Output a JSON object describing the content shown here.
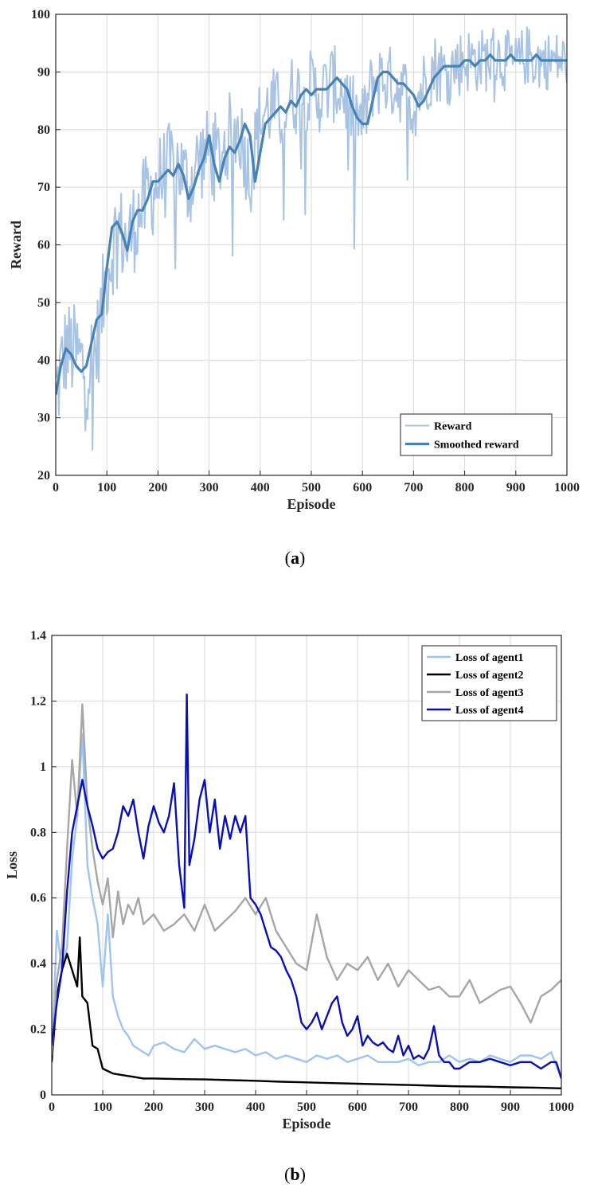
{
  "captions": {
    "a_open": "(",
    "a_letter": "a",
    "a_close": ")",
    "b_open": "(",
    "b_letter": "b",
    "b_close": ")"
  },
  "chart_data": [
    {
      "type": "line",
      "panel": "a",
      "xlabel": "Episode",
      "ylabel": "Reward",
      "xlim": [
        0,
        1000
      ],
      "ylim": [
        20,
        100
      ],
      "xticks": [
        0,
        100,
        200,
        300,
        400,
        500,
        600,
        700,
        800,
        900,
        1000
      ],
      "yticks": [
        20,
        30,
        40,
        50,
        60,
        70,
        80,
        90,
        100
      ],
      "grid": true,
      "legend_position": "bottom-right",
      "series": [
        {
          "name": "Reward",
          "color": "#a9c3e3",
          "noisy": true,
          "x": [
            0,
            20,
            40,
            60,
            80,
            100,
            120,
            140,
            160,
            180,
            200,
            220,
            240,
            260,
            280,
            300,
            320,
            340,
            360,
            380,
            400,
            420,
            440,
            460,
            480,
            500,
            520,
            540,
            560,
            580,
            600,
            620,
            640,
            660,
            680,
            700,
            720,
            740,
            760,
            780,
            800,
            820,
            840,
            860,
            880,
            900,
            920,
            940,
            960,
            980,
            1000
          ],
          "values": [
            34,
            42,
            41,
            38,
            42,
            55,
            63,
            60,
            65,
            68,
            71,
            73,
            74,
            70,
            75,
            76,
            75,
            79,
            80,
            72,
            82,
            84,
            83,
            86,
            86,
            87,
            86,
            88,
            87,
            83,
            81,
            88,
            89,
            88,
            87,
            84,
            88,
            91,
            90,
            91,
            92,
            92,
            92,
            93,
            92,
            91,
            93,
            92,
            92,
            92,
            92
          ]
        },
        {
          "name": "Smoothed reward",
          "color": "#4682b4",
          "x": [
            0,
            10,
            20,
            30,
            40,
            50,
            60,
            70,
            80,
            90,
            100,
            110,
            120,
            130,
            140,
            150,
            160,
            170,
            180,
            190,
            200,
            210,
            220,
            230,
            240,
            250,
            260,
            270,
            280,
            290,
            300,
            310,
            320,
            330,
            340,
            350,
            360,
            370,
            380,
            390,
            400,
            410,
            420,
            430,
            440,
            450,
            460,
            470,
            480,
            490,
            500,
            510,
            520,
            530,
            540,
            550,
            560,
            570,
            580,
            590,
            600,
            610,
            620,
            630,
            640,
            650,
            660,
            670,
            680,
            690,
            700,
            710,
            720,
            730,
            740,
            750,
            760,
            770,
            780,
            790,
            800,
            810,
            820,
            830,
            840,
            850,
            860,
            870,
            880,
            890,
            900,
            910,
            920,
            930,
            940,
            950,
            960,
            970,
            980,
            990,
            1000
          ],
          "values": [
            34,
            39,
            42,
            41,
            39,
            38,
            39,
            43,
            47,
            48,
            56,
            63,
            64,
            62,
            59,
            64,
            66,
            66,
            68,
            71,
            71,
            72,
            73,
            72,
            74,
            72,
            68,
            70,
            73,
            75,
            79,
            74,
            71,
            75,
            77,
            76,
            78,
            81,
            79,
            71,
            76,
            81,
            82,
            83,
            84,
            83,
            85,
            84,
            86,
            87,
            86,
            87,
            87,
            87,
            88,
            89,
            88,
            87,
            84,
            82,
            81,
            81,
            85,
            89,
            90,
            90,
            89,
            88,
            88,
            87,
            86,
            84,
            85,
            87,
            89,
            90,
            91,
            91,
            91,
            91,
            92,
            92,
            91,
            92,
            92,
            93,
            92,
            92,
            92,
            93,
            92,
            92,
            92,
            92,
            93,
            92,
            92,
            92,
            92,
            92,
            92
          ]
        }
      ]
    },
    {
      "type": "line",
      "panel": "b",
      "xlabel": "Episode",
      "ylabel": "Loss",
      "xlim": [
        0,
        1000
      ],
      "ylim": [
        0,
        1.4
      ],
      "xticks": [
        0,
        100,
        200,
        300,
        400,
        500,
        600,
        700,
        800,
        900,
        1000
      ],
      "yticks": [
        0,
        0.2,
        0.4,
        0.6,
        0.8,
        1,
        1.2,
        1.4
      ],
      "yticklabels": [
        "0",
        "0.2",
        "0.4",
        "0.6",
        "0.8",
        "1",
        "1.2",
        "1.4"
      ],
      "grid": true,
      "legend_position": "top-right",
      "series": [
        {
          "name": "Loss of agent1",
          "color": "#9ec4ef",
          "x": [
            0,
            10,
            20,
            30,
            40,
            50,
            60,
            70,
            80,
            90,
            100,
            110,
            120,
            130,
            140,
            150,
            160,
            170,
            180,
            190,
            200,
            220,
            240,
            260,
            280,
            300,
            320,
            340,
            360,
            380,
            400,
            420,
            440,
            460,
            480,
            500,
            520,
            540,
            560,
            580,
            600,
            620,
            640,
            660,
            680,
            700,
            720,
            740,
            760,
            780,
            800,
            820,
            840,
            860,
            880,
            900,
            920,
            940,
            960,
            980,
            1000
          ],
          "values": [
            0.12,
            0.5,
            0.38,
            0.45,
            0.72,
            0.85,
            1.1,
            0.7,
            0.6,
            0.52,
            0.33,
            0.55,
            0.3,
            0.24,
            0.2,
            0.18,
            0.15,
            0.14,
            0.13,
            0.12,
            0.15,
            0.16,
            0.14,
            0.13,
            0.17,
            0.14,
            0.15,
            0.14,
            0.13,
            0.14,
            0.12,
            0.13,
            0.11,
            0.12,
            0.11,
            0.1,
            0.12,
            0.11,
            0.12,
            0.1,
            0.11,
            0.12,
            0.1,
            0.1,
            0.1,
            0.11,
            0.09,
            0.1,
            0.1,
            0.12,
            0.1,
            0.11,
            0.1,
            0.12,
            0.11,
            0.1,
            0.12,
            0.12,
            0.11,
            0.13,
            0.05
          ]
        },
        {
          "name": "Loss of agent2",
          "color": "#000000",
          "x": [
            0,
            10,
            20,
            30,
            40,
            50,
            55,
            60,
            70,
            80,
            90,
            100,
            120,
            140,
            160,
            180,
            200,
            250,
            300,
            350,
            400,
            450,
            500,
            550,
            600,
            650,
            700,
            750,
            800,
            850,
            900,
            950,
            1000
          ],
          "values": [
            0.1,
            0.3,
            0.38,
            0.43,
            0.38,
            0.33,
            0.48,
            0.3,
            0.28,
            0.15,
            0.14,
            0.08,
            0.065,
            0.06,
            0.055,
            0.05,
            0.05,
            0.048,
            0.047,
            0.045,
            0.043,
            0.04,
            0.038,
            0.036,
            0.034,
            0.032,
            0.03,
            0.028,
            0.026,
            0.025,
            0.023,
            0.022,
            0.02
          ]
        },
        {
          "name": "Loss of agent3",
          "color": "#a6a6a6",
          "x": [
            0,
            10,
            20,
            30,
            40,
            50,
            60,
            70,
            80,
            90,
            100,
            110,
            120,
            130,
            140,
            150,
            160,
            170,
            180,
            200,
            220,
            240,
            260,
            280,
            300,
            320,
            340,
            360,
            380,
            400,
            420,
            440,
            460,
            480,
            500,
            520,
            540,
            560,
            580,
            600,
            620,
            640,
            660,
            680,
            700,
            720,
            740,
            760,
            780,
            800,
            820,
            840,
            860,
            880,
            900,
            920,
            940,
            960,
            980,
            1000
          ],
          "values": [
            0.12,
            0.35,
            0.45,
            0.75,
            1.02,
            0.85,
            1.19,
            0.88,
            0.75,
            0.65,
            0.58,
            0.66,
            0.48,
            0.62,
            0.52,
            0.58,
            0.55,
            0.6,
            0.52,
            0.55,
            0.5,
            0.52,
            0.55,
            0.5,
            0.58,
            0.5,
            0.53,
            0.56,
            0.6,
            0.55,
            0.6,
            0.5,
            0.45,
            0.4,
            0.38,
            0.55,
            0.42,
            0.35,
            0.4,
            0.38,
            0.42,
            0.35,
            0.4,
            0.33,
            0.38,
            0.35,
            0.32,
            0.33,
            0.3,
            0.3,
            0.35,
            0.28,
            0.3,
            0.32,
            0.33,
            0.28,
            0.22,
            0.3,
            0.32,
            0.35
          ]
        },
        {
          "name": "Loss of agent4",
          "color": "#0a0fb4",
          "x": [
            0,
            10,
            20,
            30,
            40,
            50,
            60,
            70,
            80,
            90,
            100,
            110,
            120,
            130,
            140,
            150,
            160,
            170,
            180,
            190,
            200,
            210,
            220,
            230,
            240,
            250,
            260,
            265,
            270,
            280,
            290,
            300,
            310,
            320,
            330,
            340,
            350,
            360,
            370,
            380,
            390,
            400,
            410,
            420,
            430,
            440,
            450,
            460,
            470,
            480,
            490,
            500,
            510,
            520,
            530,
            540,
            550,
            560,
            570,
            580,
            590,
            600,
            610,
            620,
            630,
            640,
            650,
            660,
            670,
            680,
            690,
            700,
            710,
            720,
            730,
            740,
            750,
            760,
            770,
            780,
            790,
            800,
            820,
            840,
            860,
            880,
            900,
            920,
            940,
            960,
            980,
            990,
            1000
          ],
          "values": [
            0.15,
            0.28,
            0.38,
            0.62,
            0.8,
            0.88,
            0.96,
            0.88,
            0.82,
            0.75,
            0.72,
            0.74,
            0.75,
            0.8,
            0.88,
            0.85,
            0.9,
            0.8,
            0.72,
            0.82,
            0.88,
            0.83,
            0.8,
            0.85,
            0.95,
            0.7,
            0.57,
            1.22,
            0.7,
            0.78,
            0.9,
            0.96,
            0.8,
            0.9,
            0.75,
            0.85,
            0.78,
            0.85,
            0.8,
            0.85,
            0.6,
            0.58,
            0.55,
            0.5,
            0.45,
            0.44,
            0.42,
            0.38,
            0.35,
            0.3,
            0.22,
            0.2,
            0.22,
            0.25,
            0.2,
            0.24,
            0.28,
            0.3,
            0.22,
            0.18,
            0.2,
            0.24,
            0.15,
            0.18,
            0.16,
            0.15,
            0.16,
            0.14,
            0.13,
            0.18,
            0.12,
            0.15,
            0.11,
            0.12,
            0.11,
            0.14,
            0.21,
            0.12,
            0.1,
            0.1,
            0.08,
            0.08,
            0.1,
            0.1,
            0.11,
            0.1,
            0.09,
            0.1,
            0.1,
            0.08,
            0.1,
            0.1,
            0.05
          ]
        }
      ]
    }
  ]
}
